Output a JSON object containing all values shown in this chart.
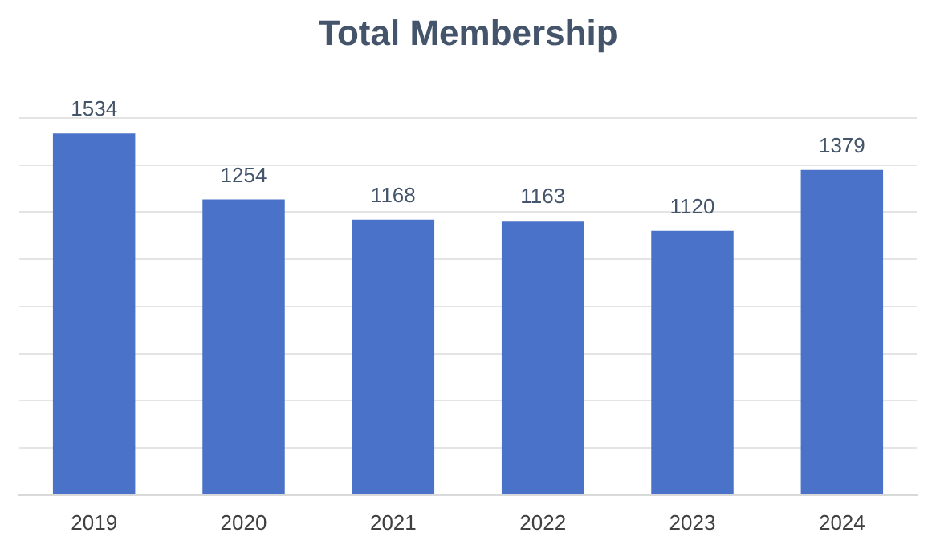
{
  "chart_data": {
    "type": "bar",
    "title": "Total Membership",
    "categories": [
      "2019",
      "2020",
      "2021",
      "2022",
      "2023",
      "2024"
    ],
    "values": [
      1534,
      1254,
      1168,
      1163,
      1120,
      1379
    ],
    "color": "#4a72c8",
    "ylim": [
      0,
      1800
    ],
    "yticks": [
      {
        "value": 0,
        "label": null
      },
      {
        "value": 200,
        "label": null
      },
      {
        "value": 400,
        "label": null
      },
      {
        "value": 600,
        "label": null
      },
      {
        "value": 800,
        "label": null
      },
      {
        "value": 1000,
        "label": null
      },
      {
        "value": 1200,
        "label": null
      },
      {
        "value": 1400,
        "label": null
      },
      {
        "value": 1600,
        "label": null
      },
      {
        "value": 1800,
        "label": null
      }
    ],
    "grid": "y",
    "tick_labels": "x",
    "data_labels": true
  }
}
